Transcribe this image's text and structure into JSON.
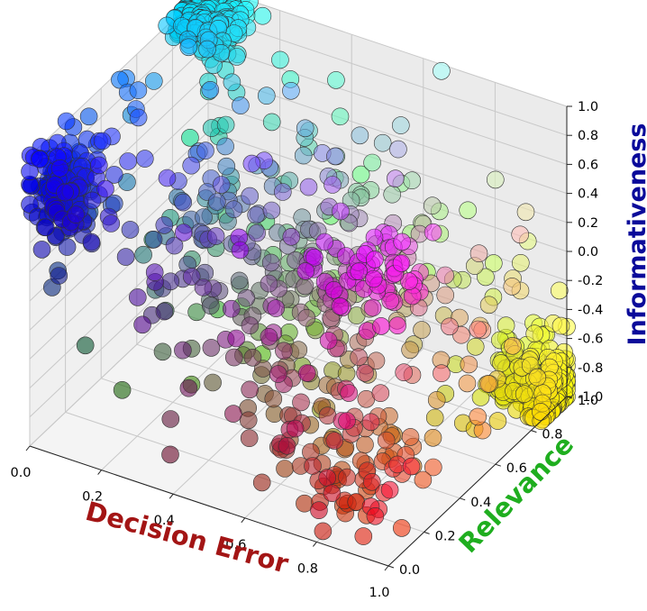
{
  "chart_data": {
    "type": "scatter",
    "projection": "3d",
    "title": "",
    "xlabel": "Decision Error",
    "ylabel": "Relevance",
    "zlabel": "Informativeness",
    "xlim": [
      0.0,
      1.0
    ],
    "ylim": [
      0.0,
      1.0
    ],
    "zlim": [
      -1.0,
      1.0
    ],
    "x_ticks": [
      "0.0",
      "0.2",
      "0.4",
      "0.6",
      "0.8",
      "1.0"
    ],
    "y_ticks": [
      "0.0",
      "0.2",
      "0.4",
      "0.6",
      "0.8",
      "1.0"
    ],
    "z_ticks": [
      "-1.0",
      "-0.8",
      "-0.6",
      "-0.4",
      "-0.2",
      "0.0",
      "0.2",
      "0.4",
      "0.6",
      "0.8",
      "1.0"
    ],
    "grid": true,
    "label_colors": {
      "xlabel": "#a31515",
      "ylabel": "#1fae1f",
      "zlabel": "#0a0a9a"
    },
    "point_color_encoding": "rgb = (decision error, relevance, (informativeness + 1) / 2)",
    "point_count_estimate": 1200,
    "clusters": [
      {
        "region": "low error, high relevance, high informativeness",
        "x": 0.05,
        "y": 0.9,
        "z": 0.95,
        "count": 260,
        "color": "#27e0f0"
      },
      {
        "region": "low error, low relevance, high informativeness",
        "x": 0.05,
        "y": 0.1,
        "z": 0.7,
        "count": 150,
        "color": "#2a3cf5"
      },
      {
        "region": "high error, high relevance, low informativeness",
        "x": 0.95,
        "y": 0.95,
        "z": -0.9,
        "count": 230,
        "color": "#f2e020"
      },
      {
        "region": "mid error, mid relevance, mid informativeness",
        "x": 0.5,
        "y": 0.5,
        "z": 0.0,
        "count": 260,
        "color": "#9aa08a"
      },
      {
        "region": "high error, low relevance, low informativeness",
        "x": 0.75,
        "y": 0.25,
        "z": -0.8,
        "count": 60,
        "color": "#f07a6a"
      },
      {
        "region": "high error, low relevance, high informativeness",
        "x": 0.9,
        "y": 0.1,
        "z": 0.85,
        "count": 60,
        "color": "#f4a4f4"
      }
    ]
  }
}
